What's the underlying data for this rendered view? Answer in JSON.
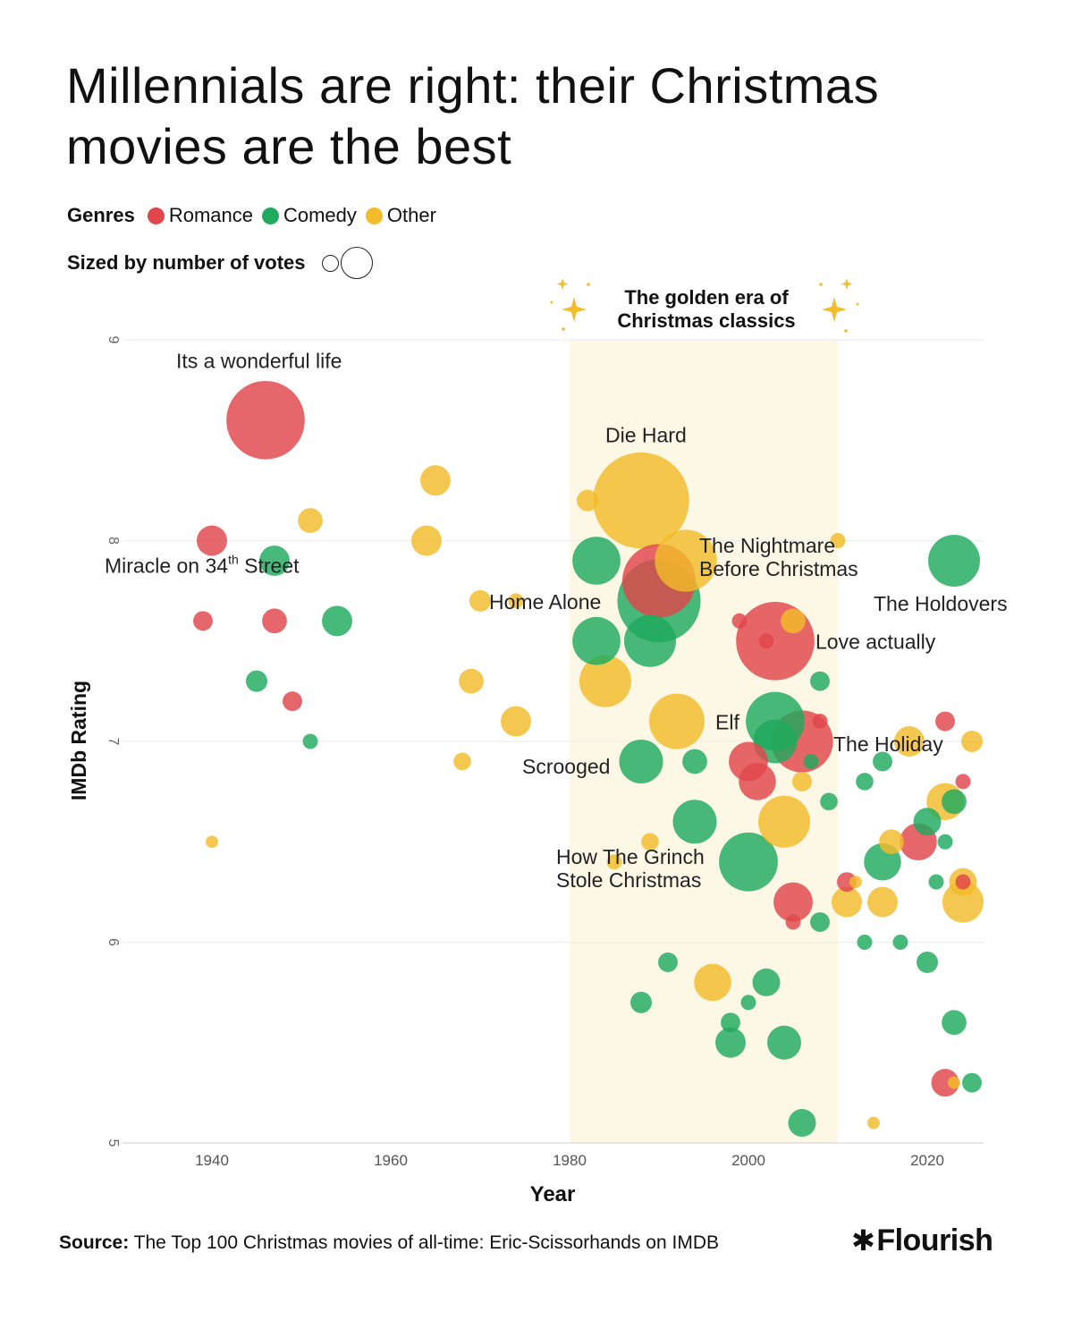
{
  "title": "Millennials are right: their Christmas movies are the best",
  "legend": {
    "genres_label": "Genres",
    "size_label": "Sized by number of votes",
    "items": [
      {
        "name": "Romance",
        "color": "#e0464b"
      },
      {
        "name": "Comedy",
        "color": "#1faa5e"
      },
      {
        "name": "Other",
        "color": "#f2bc2a"
      }
    ]
  },
  "source": {
    "label": "Source:",
    "text": "The Top 100 Christmas movies of all-time: Eric-Scissorhands on IMDB"
  },
  "brand": {
    "star": "✱",
    "name": "Flourish"
  },
  "chart_data": {
    "type": "scatter",
    "title": "Millennials are right: their Christmas movies are the best",
    "xlabel": "Year",
    "ylabel": "IMDb Rating",
    "xlim": [
      1930,
      2026
    ],
    "ylim": [
      5,
      9
    ],
    "x_ticks": [
      1940,
      1960,
      1980,
      2000,
      2020
    ],
    "y_ticks": [
      5,
      6,
      7,
      8,
      9
    ],
    "grid": "horizontal",
    "highlight": {
      "x_start": 1980,
      "x_end": 2010,
      "label_line1": "The golden era of",
      "label_line2": "Christmas classics"
    },
    "series": [
      {
        "name": "Romance",
        "color": "#e0464b",
        "points": [
          {
            "x": 1946,
            "y": 8.6,
            "votes": 8
          },
          {
            "x": 1940,
            "y": 8.0,
            "votes": 1.2
          },
          {
            "x": 1939,
            "y": 7.6,
            "votes": 0.5
          },
          {
            "x": 1947,
            "y": 7.6,
            "votes": 0.8
          },
          {
            "x": 1949,
            "y": 7.2,
            "votes": 0.5
          },
          {
            "x": 1990,
            "y": 7.8,
            "votes": 7
          },
          {
            "x": 1999,
            "y": 7.6,
            "votes": 0.3
          },
          {
            "x": 2003,
            "y": 7.5,
            "votes": 8
          },
          {
            "x": 2006,
            "y": 7.0,
            "votes": 5
          },
          {
            "x": 2000,
            "y": 6.9,
            "votes": 2
          },
          {
            "x": 2001,
            "y": 6.8,
            "votes": 1.8
          },
          {
            "x": 2005,
            "y": 6.2,
            "votes": 2
          },
          {
            "x": 2005,
            "y": 6.1,
            "votes": 0.3
          },
          {
            "x": 2011,
            "y": 6.3,
            "votes": 0.5
          },
          {
            "x": 2019,
            "y": 6.5,
            "votes": 1.8
          },
          {
            "x": 2022,
            "y": 7.1,
            "votes": 0.5
          },
          {
            "x": 2024,
            "y": 6.8,
            "votes": 0.3
          },
          {
            "x": 2024,
            "y": 6.3,
            "votes": 0.3
          },
          {
            "x": 2022,
            "y": 5.3,
            "votes": 1
          },
          {
            "x": 2008,
            "y": 7.1,
            "votes": 0.3
          },
          {
            "x": 2002,
            "y": 7.5,
            "votes": 0.3
          }
        ]
      },
      {
        "name": "Comedy",
        "color": "#1faa5e",
        "points": [
          {
            "x": 1947,
            "y": 7.9,
            "votes": 1.2
          },
          {
            "x": 1954,
            "y": 7.6,
            "votes": 1.2
          },
          {
            "x": 1945,
            "y": 7.3,
            "votes": 0.6
          },
          {
            "x": 1951,
            "y": 7.0,
            "votes": 0.3
          },
          {
            "x": 1983,
            "y": 7.9,
            "votes": 3
          },
          {
            "x": 1990,
            "y": 7.7,
            "votes": 9
          },
          {
            "x": 1983,
            "y": 7.5,
            "votes": 3
          },
          {
            "x": 1989,
            "y": 7.5,
            "votes": 3.5
          },
          {
            "x": 1988,
            "y": 6.9,
            "votes": 2.5
          },
          {
            "x": 1994,
            "y": 6.9,
            "votes": 0.8
          },
          {
            "x": 1994,
            "y": 6.6,
            "votes": 2.5
          },
          {
            "x": 2000,
            "y": 6.4,
            "votes": 4.5
          },
          {
            "x": 2003,
            "y": 7.1,
            "votes": 4.5
          },
          {
            "x": 2003,
            "y": 7.0,
            "votes": 2.5
          },
          {
            "x": 2007,
            "y": 6.9,
            "votes": 0.3
          },
          {
            "x": 2008,
            "y": 7.3,
            "votes": 0.5
          },
          {
            "x": 2009,
            "y": 6.7,
            "votes": 0.4
          },
          {
            "x": 2008,
            "y": 6.1,
            "votes": 0.5
          },
          {
            "x": 2013,
            "y": 6.8,
            "votes": 0.4
          },
          {
            "x": 2015,
            "y": 6.9,
            "votes": 0.5
          },
          {
            "x": 2015,
            "y": 6.4,
            "votes": 1.8
          },
          {
            "x": 2020,
            "y": 6.6,
            "votes": 1
          },
          {
            "x": 2023,
            "y": 7.9,
            "votes": 3.5
          },
          {
            "x": 2023,
            "y": 6.7,
            "votes": 0.8
          },
          {
            "x": 2022,
            "y": 6.5,
            "votes": 0.3
          },
          {
            "x": 2021,
            "y": 6.3,
            "votes": 0.3
          },
          {
            "x": 2013,
            "y": 6.0,
            "votes": 0.3
          },
          {
            "x": 2017,
            "y": 6.0,
            "votes": 0.3
          },
          {
            "x": 2020,
            "y": 5.9,
            "votes": 0.6
          },
          {
            "x": 1991,
            "y": 5.9,
            "votes": 0.5
          },
          {
            "x": 2002,
            "y": 5.8,
            "votes": 1
          },
          {
            "x": 1988,
            "y": 5.7,
            "votes": 0.6
          },
          {
            "x": 2000,
            "y": 5.7,
            "votes": 0.3
          },
          {
            "x": 1998,
            "y": 5.6,
            "votes": 0.5
          },
          {
            "x": 1998,
            "y": 5.5,
            "votes": 1.2
          },
          {
            "x": 2004,
            "y": 5.5,
            "votes": 1.5
          },
          {
            "x": 2023,
            "y": 5.6,
            "votes": 0.8
          },
          {
            "x": 2025,
            "y": 5.3,
            "votes": 0.5
          },
          {
            "x": 2006,
            "y": 5.1,
            "votes": 1
          }
        ]
      },
      {
        "name": "Other",
        "color": "#f2bc2a",
        "points": [
          {
            "x": 1965,
            "y": 8.3,
            "votes": 1.2
          },
          {
            "x": 1951,
            "y": 8.1,
            "votes": 0.8
          },
          {
            "x": 1964,
            "y": 8.0,
            "votes": 1.2
          },
          {
            "x": 1982,
            "y": 8.2,
            "votes": 0.6
          },
          {
            "x": 1988,
            "y": 8.2,
            "votes": 12
          },
          {
            "x": 1993,
            "y": 7.9,
            "votes": 5
          },
          {
            "x": 1970,
            "y": 7.7,
            "votes": 0.6
          },
          {
            "x": 1974,
            "y": 7.7,
            "votes": 0.3
          },
          {
            "x": 1969,
            "y": 7.3,
            "votes": 0.8
          },
          {
            "x": 1974,
            "y": 7.1,
            "votes": 1.2
          },
          {
            "x": 1968,
            "y": 6.9,
            "votes": 0.4
          },
          {
            "x": 1940,
            "y": 6.5,
            "votes": 0.2
          },
          {
            "x": 1984,
            "y": 7.3,
            "votes": 3.5
          },
          {
            "x": 1992,
            "y": 7.1,
            "votes": 4
          },
          {
            "x": 2005,
            "y": 7.6,
            "votes": 0.8
          },
          {
            "x": 2010,
            "y": 8.0,
            "votes": 0.3
          },
          {
            "x": 2004,
            "y": 6.6,
            "votes": 3.5
          },
          {
            "x": 2006,
            "y": 6.8,
            "votes": 0.5
          },
          {
            "x": 1996,
            "y": 5.8,
            "votes": 1.8
          },
          {
            "x": 1989,
            "y": 6.5,
            "votes": 0.4
          },
          {
            "x": 1985,
            "y": 6.4,
            "votes": 0.3
          },
          {
            "x": 2011,
            "y": 6.2,
            "votes": 1.2
          },
          {
            "x": 2015,
            "y": 6.2,
            "votes": 1.2
          },
          {
            "x": 2016,
            "y": 6.5,
            "votes": 0.8
          },
          {
            "x": 2018,
            "y": 7.0,
            "votes": 1.2
          },
          {
            "x": 2022,
            "y": 6.7,
            "votes": 1.8
          },
          {
            "x": 2025,
            "y": 7.0,
            "votes": 0.6
          },
          {
            "x": 2024,
            "y": 6.3,
            "votes": 1
          },
          {
            "x": 2024,
            "y": 6.2,
            "votes": 2.2
          },
          {
            "x": 2014,
            "y": 5.1,
            "votes": 0.2
          },
          {
            "x": 2023,
            "y": 5.3,
            "votes": 0.2
          },
          {
            "x": 2012,
            "y": 6.3,
            "votes": 0.2
          }
        ]
      }
    ],
    "annotations": [
      {
        "lines": [
          "Its a wonderful life"
        ],
        "x": 1936,
        "y": 8.86,
        "anchor": "start"
      },
      {
        "lines": [
          "Die Hard"
        ],
        "x": 1984,
        "y": 8.49,
        "anchor": "start"
      },
      {
        "lines": [
          "Miracle on 34",
          "th",
          " Street"
        ],
        "x": 1928,
        "y": 7.84,
        "anchor": "start",
        "superscript": true
      },
      {
        "lines": [
          "Home Alone"
        ],
        "x": 1971,
        "y": 7.66,
        "anchor": "start"
      },
      {
        "lines": [
          "The Nightmare",
          "Before Christmas"
        ],
        "x": 1994.5,
        "y": 7.94,
        "anchor": "start"
      },
      {
        "lines": [
          "The Holdovers"
        ],
        "x": 2014,
        "y": 7.65,
        "anchor": "start"
      },
      {
        "lines": [
          "Love actually"
        ],
        "x": 2007.5,
        "y": 7.46,
        "anchor": "start"
      },
      {
        "lines": [
          "Elf"
        ],
        "x": 1996.3,
        "y": 7.06,
        "anchor": "start"
      },
      {
        "lines": [
          "The Holiday"
        ],
        "x": 2009.5,
        "y": 6.95,
        "anchor": "start"
      },
      {
        "lines": [
          "Scrooged"
        ],
        "x": 1974.7,
        "y": 6.84,
        "anchor": "start"
      },
      {
        "lines": [
          "How The Grinch",
          "Stole Christmas"
        ],
        "x": 1978.5,
        "y": 6.39,
        "anchor": "start"
      }
    ]
  }
}
